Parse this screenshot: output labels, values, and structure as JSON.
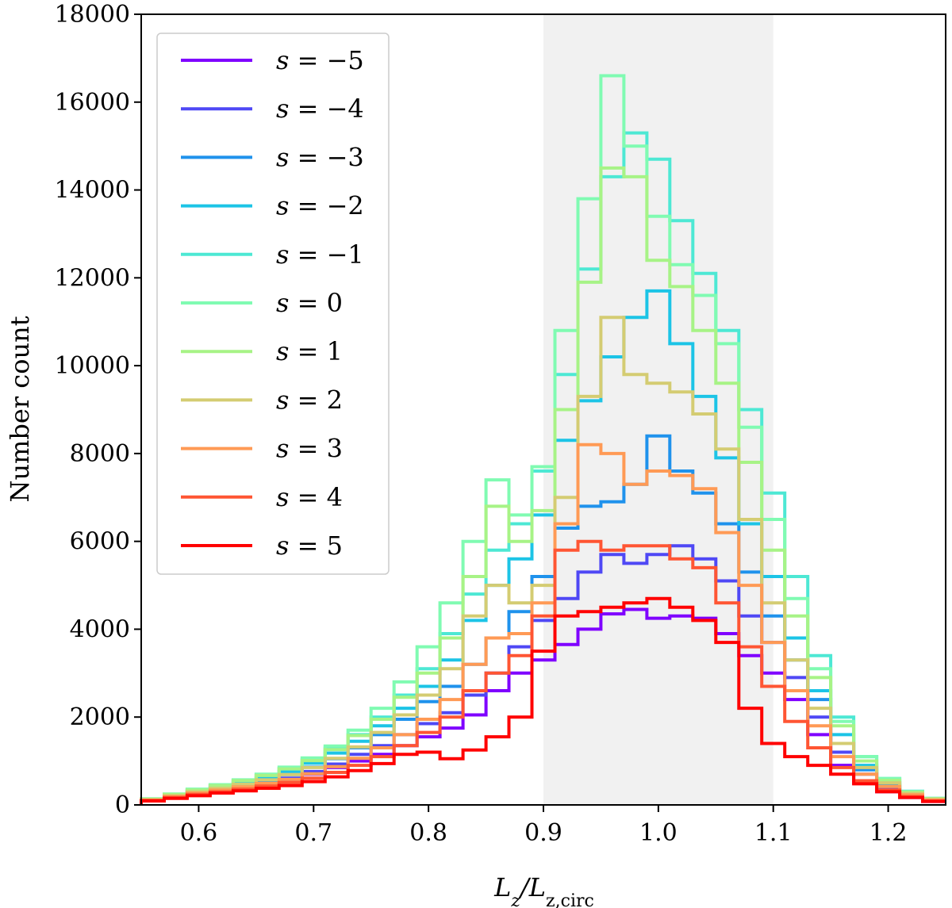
{
  "chart_data": {
    "type": "histogram-step",
    "xlabel": "L_z/L_{z,circ}",
    "ylabel": "Number count",
    "xlim": [
      0.55,
      1.25
    ],
    "ylim": [
      0,
      18000
    ],
    "xticks": [
      "0.6",
      "0.7",
      "0.8",
      "0.9",
      "1.0",
      "1.1",
      "1.2"
    ],
    "yticks": [
      "0",
      "2000",
      "4000",
      "6000",
      "8000",
      "10000",
      "12000",
      "14000",
      "16000",
      "18000"
    ],
    "shaded_region": [
      0.9,
      1.1
    ],
    "bin_edges": [
      0.55,
      0.57,
      0.59,
      0.61,
      0.63,
      0.65,
      0.67,
      0.69,
      0.71,
      0.73,
      0.75,
      0.77,
      0.79,
      0.81,
      0.83,
      0.85,
      0.87,
      0.89,
      0.91,
      0.93,
      0.95,
      0.97,
      0.99,
      1.01,
      1.03,
      1.05,
      1.07,
      1.09,
      1.11,
      1.13,
      1.15,
      1.17,
      1.19,
      1.21,
      1.23,
      1.25
    ],
    "legend_position": "upper-left",
    "series": [
      {
        "name": "s = −5",
        "color": "#7f00ff",
        "values": [
          100,
          170,
          240,
          310,
          380,
          460,
          560,
          700,
          850,
          1000,
          1150,
          1350,
          1550,
          1750,
          2050,
          2600,
          3000,
          3300,
          3650,
          4000,
          4350,
          4450,
          4250,
          4300,
          4250,
          3900,
          3400,
          3000,
          2400,
          1600,
          900,
          500,
          300,
          170,
          80
        ]
      },
      {
        "name": "s = −4",
        "color": "#4f48f5",
        "values": [
          100,
          180,
          250,
          330,
          410,
          500,
          610,
          760,
          930,
          1150,
          1350,
          1600,
          1850,
          2100,
          2500,
          3000,
          3600,
          4200,
          4700,
          5300,
          5700,
          5500,
          5700,
          5900,
          5600,
          5100,
          4300,
          3700,
          2900,
          2000,
          1200,
          700,
          400,
          220,
          110
        ]
      },
      {
        "name": "s = −3",
        "color": "#1f92ec",
        "values": [
          110,
          200,
          280,
          370,
          460,
          560,
          690,
          860,
          1050,
          1300,
          1600,
          1950,
          2350,
          2700,
          3200,
          3800,
          4400,
          5200,
          6300,
          6800,
          6900,
          7300,
          8400,
          7600,
          7100,
          6400,
          5300,
          4300,
          3300,
          2400,
          1400,
          800,
          450,
          240,
          120
        ]
      },
      {
        "name": "s = −2",
        "color": "#1cc4e6",
        "values": [
          120,
          220,
          310,
          400,
          500,
          620,
          760,
          950,
          1180,
          1450,
          1800,
          2200,
          2700,
          3300,
          4200,
          5000,
          5600,
          6600,
          8300,
          9200,
          10200,
          11100,
          11700,
          10500,
          9300,
          7900,
          6400,
          5200,
          3800,
          2600,
          1600,
          900,
          500,
          270,
          130
        ]
      },
      {
        "name": "s = −1",
        "color": "#4de8d4",
        "values": [
          130,
          240,
          340,
          440,
          550,
          680,
          830,
          1030,
          1290,
          1600,
          2000,
          2500,
          3100,
          3900,
          4800,
          5800,
          6400,
          7600,
          9800,
          12200,
          14300,
          15300,
          14700,
          13300,
          12100,
          10800,
          9000,
          7100,
          5200,
          3400,
          2000,
          1100,
          600,
          310,
          150
        ]
      },
      {
        "name": "s = 0",
        "color": "#80fbb2",
        "values": [
          140,
          250,
          360,
          460,
          570,
          700,
          860,
          1070,
          1340,
          1700,
          2200,
          2800,
          3600,
          4600,
          6000,
          7400,
          6600,
          7700,
          10800,
          13800,
          16600,
          15000,
          13400,
          12300,
          11600,
          10500,
          8600,
          6500,
          4700,
          3100,
          1900,
          1100,
          600,
          300,
          150
        ]
      },
      {
        "name": "s = 1",
        "color": "#a7f386",
        "values": [
          130,
          240,
          340,
          440,
          550,
          670,
          820,
          1010,
          1260,
          1580,
          1950,
          2450,
          3000,
          3800,
          5200,
          6800,
          6000,
          6700,
          9000,
          11900,
          14500,
          14300,
          12400,
          11800,
          10800,
          9600,
          7800,
          5800,
          4300,
          2900,
          1800,
          1000,
          560,
          290,
          140
        ]
      },
      {
        "name": "s = 2",
        "color": "#d4cc72",
        "values": [
          120,
          210,
          300,
          380,
          470,
          570,
          690,
          850,
          1060,
          1320,
          1650,
          2050,
          2500,
          3100,
          4300,
          5000,
          4600,
          5000,
          7000,
          9300,
          11100,
          9800,
          9600,
          9400,
          8900,
          8100,
          6500,
          4600,
          3300,
          2200,
          1400,
          850,
          500,
          260,
          130
        ]
      },
      {
        "name": "s = 3",
        "color": "#ff9a55",
        "values": [
          110,
          190,
          270,
          340,
          410,
          490,
          580,
          710,
          870,
          1060,
          1300,
          1600,
          1950,
          2400,
          3200,
          3800,
          3900,
          4600,
          6400,
          8200,
          8000,
          7300,
          7600,
          7500,
          7200,
          6200,
          5000,
          3700,
          2600,
          1800,
          1100,
          700,
          420,
          230,
          110
        ]
      },
      {
        "name": "s = 4",
        "color": "#ff5533",
        "values": [
          100,
          170,
          240,
          300,
          360,
          430,
          510,
          610,
          740,
          900,
          1100,
          1350,
          1650,
          2000,
          2600,
          3000,
          3400,
          4300,
          5800,
          6000,
          5800,
          5900,
          5900,
          5600,
          5400,
          4600,
          3600,
          2700,
          1900,
          1300,
          850,
          550,
          340,
          190,
          90
        ]
      },
      {
        "name": "s = 5",
        "color": "#ff0000",
        "values": [
          90,
          150,
          210,
          270,
          320,
          380,
          440,
          530,
          640,
          780,
          940,
          1150,
          1200,
          1050,
          1250,
          1550,
          2000,
          3500,
          4300,
          4400,
          4500,
          4600,
          4700,
          4500,
          4200,
          3700,
          2200,
          1400,
          1100,
          900,
          700,
          480,
          300,
          170,
          80
        ]
      }
    ]
  }
}
